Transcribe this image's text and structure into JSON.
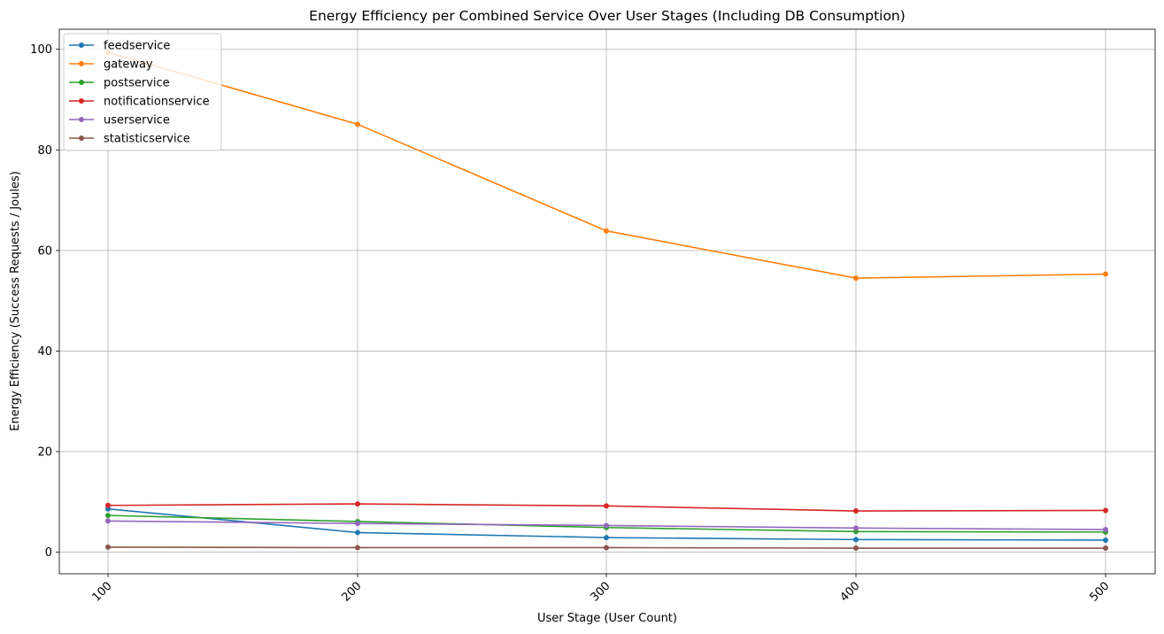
{
  "chart_data": {
    "type": "line",
    "title": "Energy Efficiency per Combined Service Over User Stages (Including DB Consumption)",
    "xlabel": "User Stage (User Count)",
    "ylabel": "Energy Efficiency (Success Requests / Joules)",
    "x": [
      100,
      200,
      300,
      400,
      500
    ],
    "x_tick_labels": [
      "100",
      "200",
      "300",
      "400",
      "500"
    ],
    "y_ticks": [
      0,
      20,
      40,
      60,
      80,
      100
    ],
    "y_tick_labels": [
      "0",
      "20",
      "40",
      "60",
      "80",
      "100"
    ],
    "xlim": [
      67,
      1305
    ],
    "ylim": [
      -4.3,
      104.0
    ],
    "grid": true,
    "legend_position": "top-left",
    "series": [
      {
        "name": "feedservice",
        "color": "#1f77b4",
        "values": [
          8.6,
          3.9,
          2.9,
          2.5,
          2.4
        ]
      },
      {
        "name": "gateway",
        "color": "#ff7f0e",
        "values": [
          99.4,
          85.1,
          63.9,
          54.5,
          55.3
        ]
      },
      {
        "name": "postservice",
        "color": "#2ca02c",
        "values": [
          7.3,
          6.1,
          4.9,
          4.1,
          4.0
        ]
      },
      {
        "name": "notificationservice",
        "color": "#d62728",
        "values": [
          9.3,
          9.6,
          9.2,
          8.2,
          8.3
        ]
      },
      {
        "name": "userservice",
        "color": "#9467bd",
        "values": [
          6.2,
          5.7,
          5.3,
          4.8,
          4.5
        ]
      },
      {
        "name": "statisticservice",
        "color": "#8c564b",
        "values": [
          1.0,
          0.9,
          0.9,
          0.8,
          0.8
        ]
      }
    ]
  }
}
